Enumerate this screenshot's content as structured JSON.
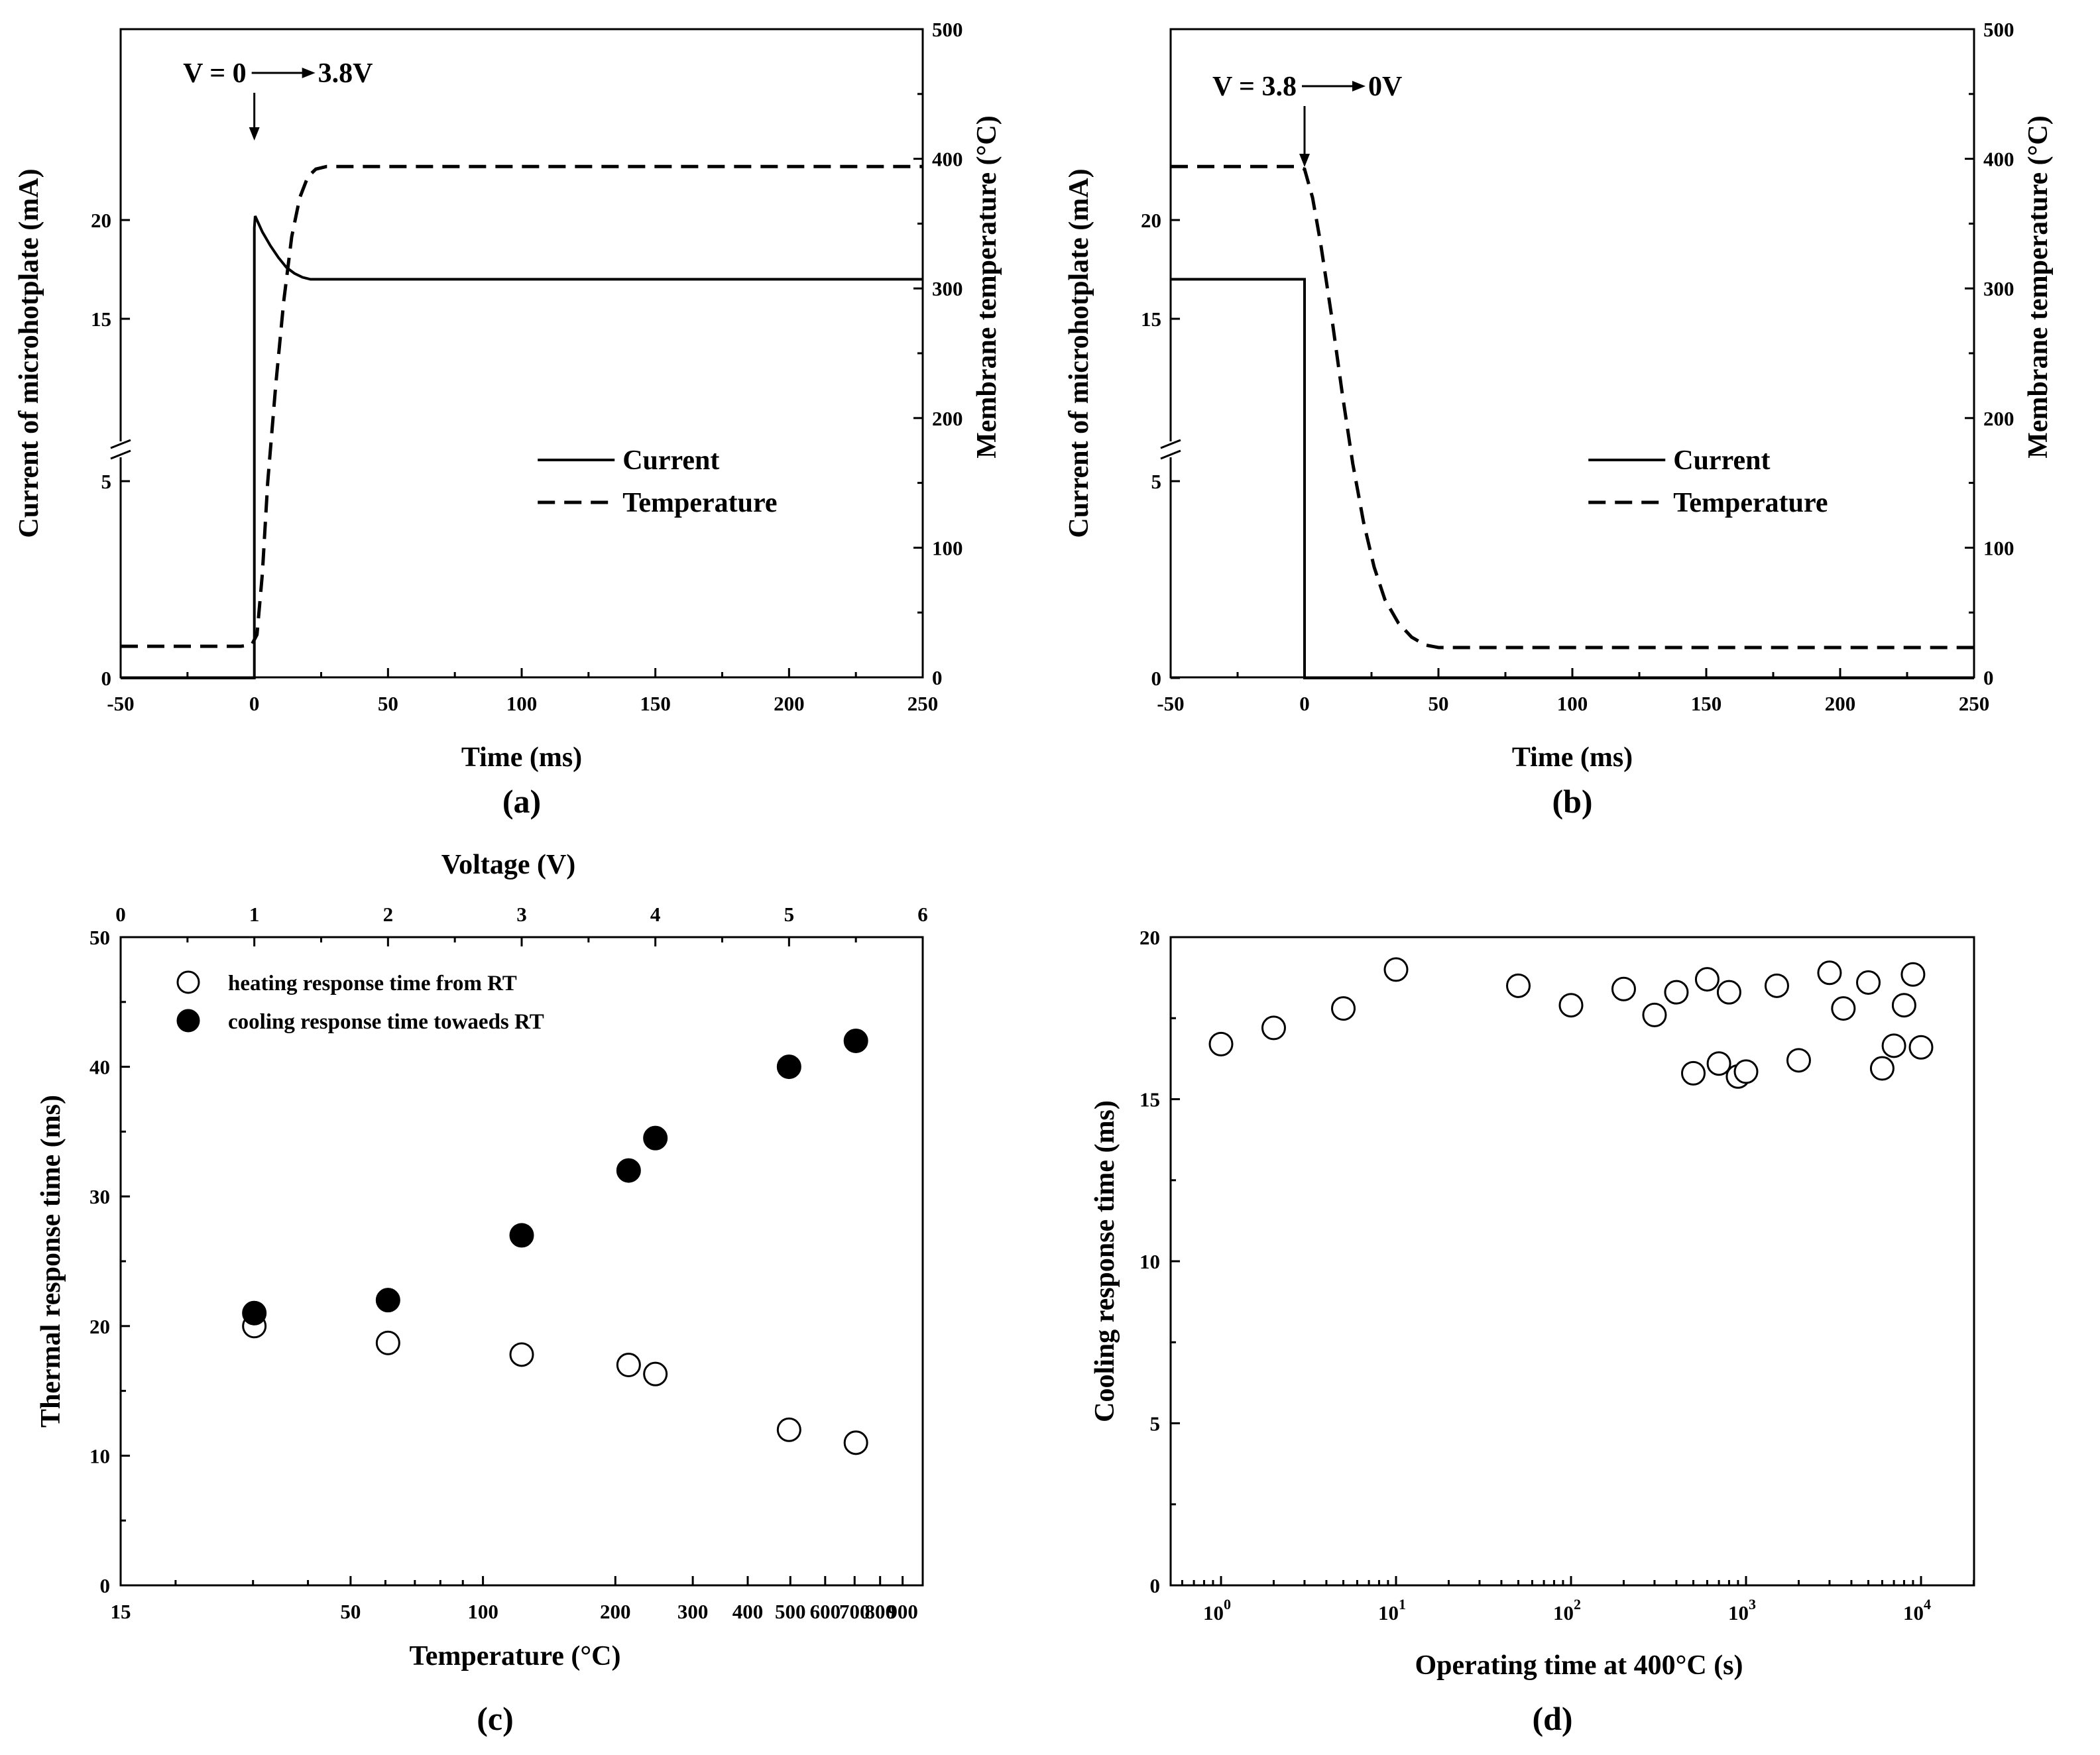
{
  "chart_data": [
    {
      "id": "a",
      "type": "line",
      "panel_label": "(a)",
      "xlabel": "Time (ms)",
      "ylabel_left": "Current of microhotplate (mA)",
      "ylabel_right": "Membrane temperature (°C)",
      "xlim": [
        -50,
        250
      ],
      "x_ticks": [
        "-50",
        "0",
        "50",
        "100",
        "150",
        "200",
        "250"
      ],
      "y_left_axis": "broken",
      "y_left_ticks": [
        "0",
        "5",
        "15",
        "20"
      ],
      "y_right_lim": [
        0,
        500
      ],
      "y_right_ticks": [
        "0",
        "100",
        "200",
        "300",
        "400",
        "500"
      ],
      "annotation": {
        "text_left": "V = 0",
        "text_right": "3.8V"
      },
      "legend": {
        "entries": [
          "Current",
          "Temperature"
        ],
        "position": "center-right"
      },
      "series": [
        {
          "name": "Current",
          "axis": "left",
          "style": "solid",
          "points": [
            [
              -50,
              0
            ],
            [
              0,
              0
            ],
            [
              0,
              5
            ],
            [
              0,
              19.6
            ],
            [
              0.3,
              20.2
            ],
            [
              3,
              19.4
            ],
            [
              6,
              18.7
            ],
            [
              9,
              18.1
            ],
            [
              12,
              17.6
            ],
            [
              15,
              17.3
            ],
            [
              18,
              17.1
            ],
            [
              21,
              17.0
            ],
            [
              25,
              17.0
            ],
            [
              250,
              17.0
            ]
          ]
        },
        {
          "name": "Temperature",
          "axis": "right",
          "style": "dashed",
          "points": [
            [
              -50,
              24
            ],
            [
              -5,
              24
            ],
            [
              -1,
              25
            ],
            [
              1,
              33
            ],
            [
              3,
              80
            ],
            [
              5,
              150
            ],
            [
              8,
              225
            ],
            [
              11,
              290
            ],
            [
              14,
              340
            ],
            [
              17,
              370
            ],
            [
              20,
              386
            ],
            [
              23,
              392
            ],
            [
              27,
              394
            ],
            [
              250,
              394
            ]
          ]
        }
      ]
    },
    {
      "id": "b",
      "type": "line",
      "panel_label": "(b)",
      "xlabel": "Time (ms)",
      "ylabel_left": "Current of microhotplate (mA)",
      "ylabel_right": "Membrane temperature (°C)",
      "xlim": [
        -50,
        250
      ],
      "x_ticks": [
        "-50",
        "0",
        "50",
        "100",
        "150",
        "200",
        "250"
      ],
      "y_left_axis": "broken",
      "y_left_ticks": [
        "0",
        "5",
        "15",
        "20"
      ],
      "y_right_lim": [
        0,
        500
      ],
      "y_right_ticks": [
        "0",
        "100",
        "200",
        "300",
        "400",
        "500"
      ],
      "annotation": {
        "text_left": "V = 3.8",
        "text_right": "0V"
      },
      "legend": {
        "entries": [
          "Current",
          "Temperature"
        ],
        "position": "center-right"
      },
      "series": [
        {
          "name": "Current",
          "axis": "left",
          "style": "solid",
          "points": [
            [
              -50,
              17.0
            ],
            [
              0,
              17.0
            ],
            [
              0,
              0
            ],
            [
              250,
              0
            ]
          ]
        },
        {
          "name": "Temperature",
          "axis": "right",
          "style": "dashed",
          "points": [
            [
              -50,
              394
            ],
            [
              -3,
              394
            ],
            [
              0,
              392
            ],
            [
              3,
              370
            ],
            [
              6,
              335
            ],
            [
              10,
              280
            ],
            [
              14,
              220
            ],
            [
              18,
              165
            ],
            [
              22,
              120
            ],
            [
              26,
              85
            ],
            [
              30,
              60
            ],
            [
              35,
              42
            ],
            [
              40,
              31
            ],
            [
              45,
              25
            ],
            [
              50,
              23
            ],
            [
              250,
              23
            ]
          ]
        }
      ]
    },
    {
      "id": "c",
      "type": "scatter",
      "panel_label": "(c)",
      "xlabel": "Temperature (°C)",
      "x_scale": "log",
      "xlim": [
        15,
        1000
      ],
      "x_ticks": [
        "15",
        "50",
        "100",
        "200",
        "300",
        "400",
        "500",
        "600",
        "700",
        "800",
        "900"
      ],
      "top_xlabel": "Voltage (V)",
      "top_xlim": [
        0,
        6
      ],
      "top_x_ticks": [
        "0",
        "1",
        "2",
        "3",
        "4",
        "5",
        "6"
      ],
      "ylabel": "Thermal response time (ms)",
      "ylim": [
        0,
        50
      ],
      "y_ticks": [
        "0",
        "10",
        "20",
        "30",
        "40",
        "50"
      ],
      "legend": {
        "entries": [
          "heating response time from RT",
          "cooling response time towaeds RT"
        ],
        "position": "top-left"
      },
      "voltages": [
        1,
        2,
        3,
        3.8,
        4,
        5,
        5.5
      ],
      "series": [
        {
          "name": "heating response time from RT",
          "marker": "open-circle",
          "values": [
            20,
            18.7,
            17.8,
            17,
            16.3,
            12,
            11
          ]
        },
        {
          "name": "cooling response time towaeds RT",
          "marker": "filled-circle",
          "values": [
            21,
            22,
            27,
            32,
            34.5,
            40,
            42
          ]
        }
      ]
    },
    {
      "id": "d",
      "type": "scatter",
      "panel_label": "(d)",
      "xlabel": "Operating time at 400°C (s)",
      "x_scale": "log",
      "xlim": [
        0.5,
        30000
      ],
      "x_ticks": [
        {
          "base": "10",
          "exp": "0"
        },
        {
          "base": "10",
          "exp": "1"
        },
        {
          "base": "10",
          "exp": "2"
        },
        {
          "base": "10",
          "exp": "3"
        },
        {
          "base": "10",
          "exp": "4"
        }
      ],
      "ylabel": "Cooling response time (ms)",
      "ylim": [
        0,
        20
      ],
      "y_ticks": [
        "0",
        "5",
        "10",
        "15",
        "20"
      ],
      "series": [
        {
          "name": "",
          "marker": "open-circle",
          "x": [
            1,
            2,
            5,
            10,
            50,
            100,
            200,
            300,
            400,
            500,
            600,
            700,
            800,
            900,
            1000,
            1500,
            2000,
            3000,
            3600,
            5000,
            6000,
            7000,
            8000,
            9000,
            10000
          ],
          "y": [
            16.7,
            17.2,
            17.8,
            19.0,
            18.5,
            17.9,
            18.4,
            17.6,
            18.3,
            15.8,
            18.7,
            16.1,
            18.3,
            15.7,
            15.85,
            18.5,
            16.2,
            18.9,
            17.8,
            18.6,
            15.95,
            16.65,
            17.9,
            18.85,
            16.6
          ]
        }
      ]
    }
  ]
}
